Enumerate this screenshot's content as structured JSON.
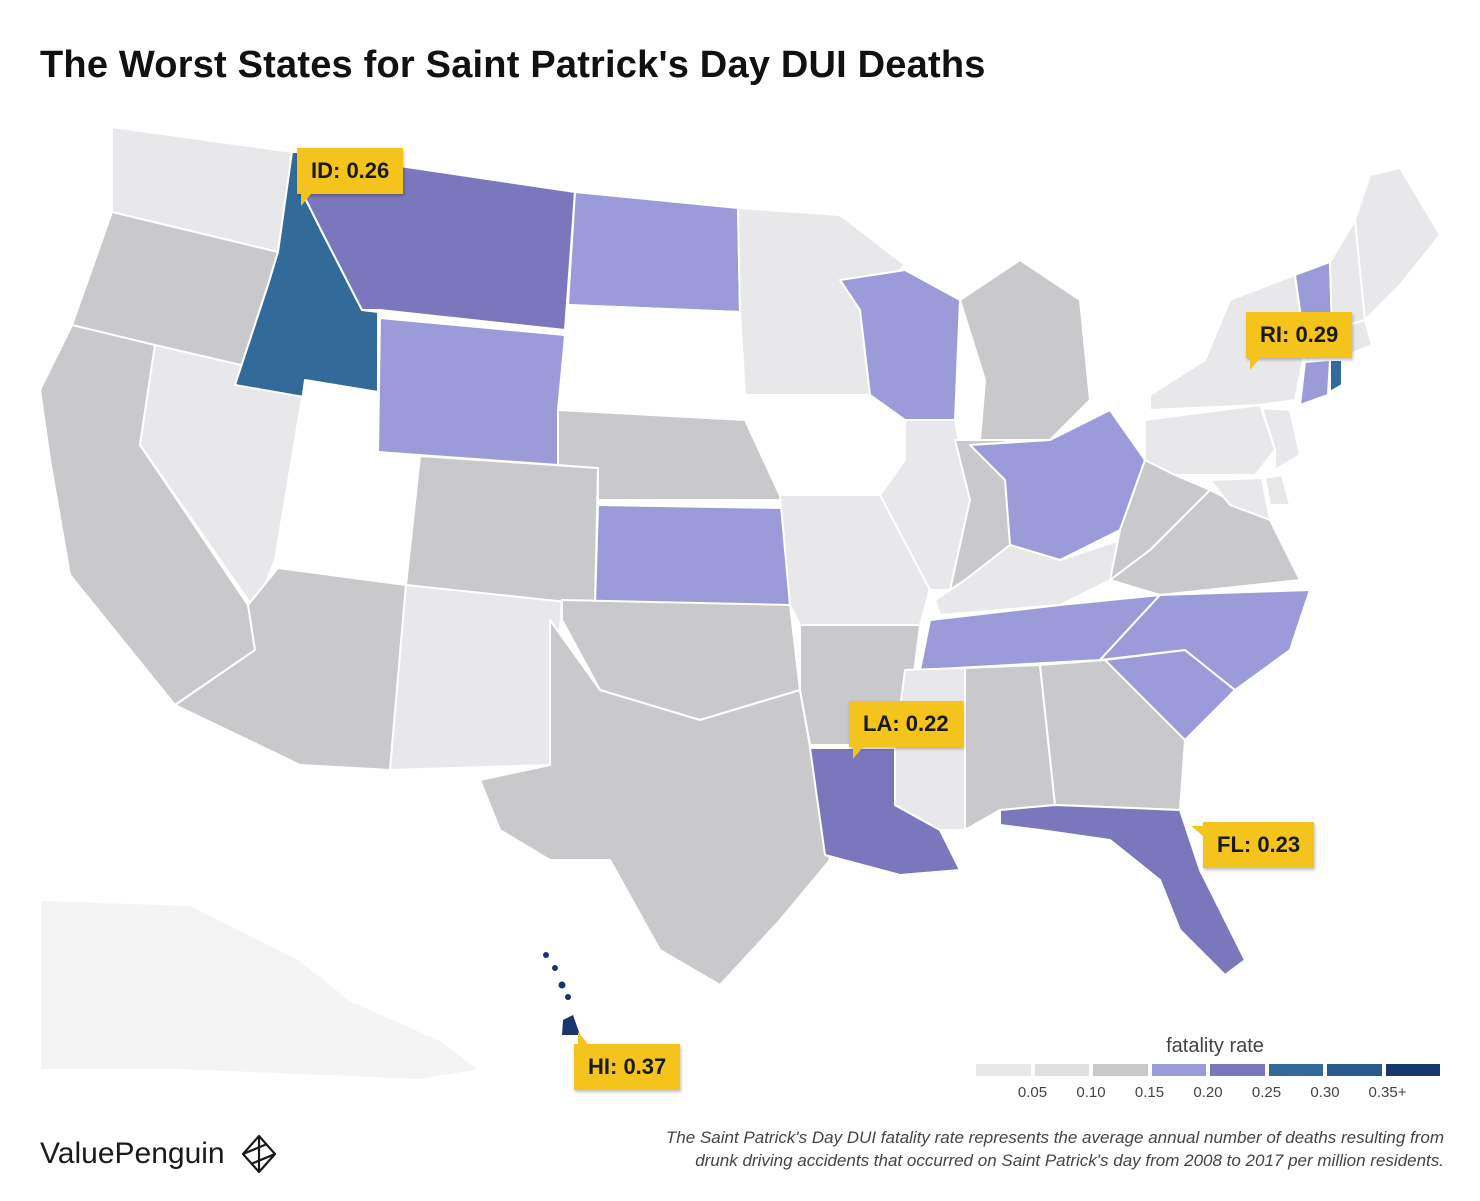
{
  "title": "The Worst States for Saint Patrick's Day DUI Deaths",
  "colors": {
    "bin_0": "#e8e8ea",
    "bin_1": "#c9c9cc",
    "bin_2": "#9c9bd9",
    "bin_3": "#7b77bd",
    "bin_4": "#326a9a",
    "bin_5": "#17366b",
    "none": "#ffffff",
    "callout": "#f4c31c"
  },
  "callouts": [
    {
      "id": "id",
      "label": "ID: 0.26"
    },
    {
      "id": "ri",
      "label": "RI: 0.29"
    },
    {
      "id": "la",
      "label": "LA: 0.22"
    },
    {
      "id": "fl",
      "label": "FL: 0.23"
    },
    {
      "id": "hi",
      "label": "HI: 0.37"
    }
  ],
  "legend": {
    "title": "fatality rate",
    "swatches": [
      "#e8e8ea",
      "#e0e0e3",
      "#c9c9cc",
      "#9c9bd9",
      "#7b77bd",
      "#326a9a",
      "#2a5a8c",
      "#17366b"
    ],
    "ticks": [
      "0.05",
      "0.10",
      "0.15",
      "0.20",
      "0.25",
      "0.30",
      "0.35+"
    ]
  },
  "brand": "ValuePenguin",
  "footnote_line1": "The Saint Patrick's Day DUI fatality rate represents the average annual number of deaths resulting from",
  "footnote_line2": "drunk driving accidents that occurred on Saint Patrick's day from 2008 to 2017 per million residents.",
  "states": [
    {
      "name": "WA",
      "bin": "bin_0"
    },
    {
      "name": "OR",
      "bin": "bin_1"
    },
    {
      "name": "CA",
      "bin": "bin_1"
    },
    {
      "name": "NV",
      "bin": "bin_0"
    },
    {
      "name": "ID",
      "bin": "bin_4",
      "value": 0.26
    },
    {
      "name": "MT",
      "bin": "bin_3"
    },
    {
      "name": "WY",
      "bin": "bin_2"
    },
    {
      "name": "UT",
      "bin": "none"
    },
    {
      "name": "AZ",
      "bin": "bin_1"
    },
    {
      "name": "NM",
      "bin": "bin_0"
    },
    {
      "name": "CO",
      "bin": "bin_1"
    },
    {
      "name": "ND",
      "bin": "bin_2"
    },
    {
      "name": "SD",
      "bin": "none"
    },
    {
      "name": "NE",
      "bin": "bin_1"
    },
    {
      "name": "KS",
      "bin": "bin_2"
    },
    {
      "name": "OK",
      "bin": "bin_1"
    },
    {
      "name": "TX",
      "bin": "bin_1"
    },
    {
      "name": "MN",
      "bin": "bin_0"
    },
    {
      "name": "IA",
      "bin": "none"
    },
    {
      "name": "MO",
      "bin": "bin_0"
    },
    {
      "name": "AR",
      "bin": "bin_1"
    },
    {
      "name": "LA",
      "bin": "bin_3",
      "value": 0.22
    },
    {
      "name": "WI",
      "bin": "bin_2"
    },
    {
      "name": "IL",
      "bin": "bin_0"
    },
    {
      "name": "MI",
      "bin": "bin_1"
    },
    {
      "name": "IN",
      "bin": "bin_1"
    },
    {
      "name": "OH",
      "bin": "bin_2"
    },
    {
      "name": "KY",
      "bin": "bin_0"
    },
    {
      "name": "TN",
      "bin": "bin_2"
    },
    {
      "name": "MS",
      "bin": "bin_0"
    },
    {
      "name": "AL",
      "bin": "bin_1"
    },
    {
      "name": "GA",
      "bin": "bin_1"
    },
    {
      "name": "FL",
      "bin": "bin_3",
      "value": 0.23
    },
    {
      "name": "SC",
      "bin": "bin_2"
    },
    {
      "name": "NC",
      "bin": "bin_2"
    },
    {
      "name": "VA",
      "bin": "bin_1"
    },
    {
      "name": "WV",
      "bin": "bin_1"
    },
    {
      "name": "PA",
      "bin": "bin_0"
    },
    {
      "name": "NY",
      "bin": "bin_0"
    },
    {
      "name": "VT",
      "bin": "bin_2"
    },
    {
      "name": "NH",
      "bin": "bin_0"
    },
    {
      "name": "ME",
      "bin": "bin_0"
    },
    {
      "name": "MA",
      "bin": "bin_0"
    },
    {
      "name": "RI",
      "bin": "bin_4",
      "value": 0.29
    },
    {
      "name": "CT",
      "bin": "bin_2"
    },
    {
      "name": "NJ",
      "bin": "bin_0"
    },
    {
      "name": "DE",
      "bin": "bin_0"
    },
    {
      "name": "MD",
      "bin": "bin_0"
    },
    {
      "name": "AK",
      "bin": "bin_0"
    },
    {
      "name": "HI",
      "bin": "bin_5",
      "value": 0.37
    }
  ]
}
